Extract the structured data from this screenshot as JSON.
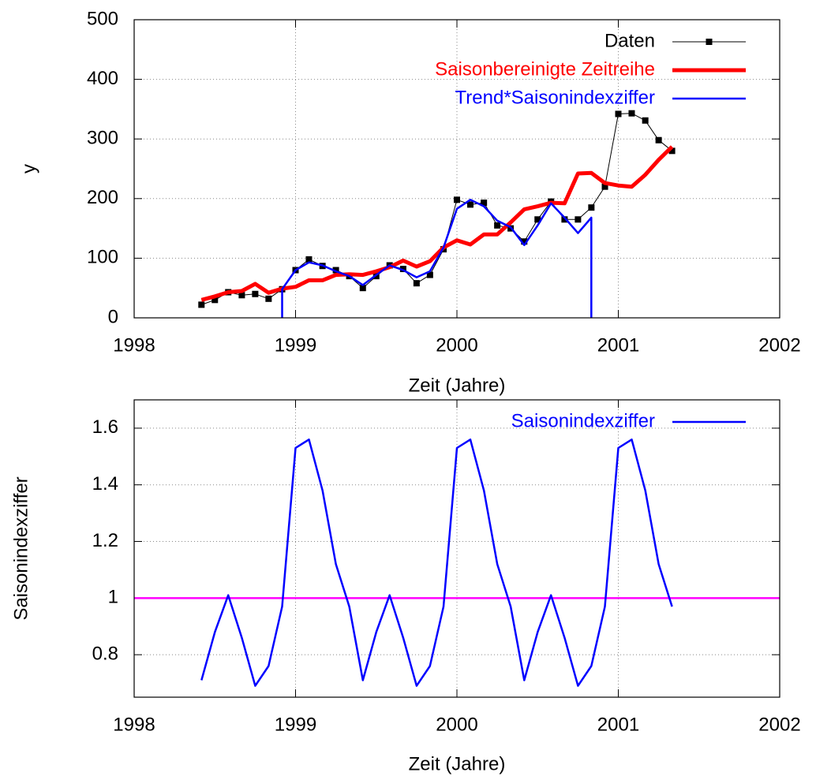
{
  "chart_data": [
    {
      "type": "line",
      "xlabel": "Zeit (Jahre)",
      "ylabel": "y",
      "xlim": [
        1998,
        2002
      ],
      "ylim": [
        0,
        500
      ],
      "xticks": [
        1998,
        1999,
        2000,
        2001,
        2002
      ],
      "yticks": [
        0,
        100,
        200,
        300,
        400,
        500
      ],
      "grid": true,
      "legend": "upper right",
      "x": [
        1998.417,
        1998.5,
        1998.583,
        1998.667,
        1998.75,
        1998.833,
        1998.917,
        1999,
        1999.083,
        1999.167,
        1999.25,
        1999.333,
        1999.417,
        1999.5,
        1999.583,
        1999.667,
        1999.75,
        1999.833,
        1999.917,
        2000,
        2000.083,
        2000.167,
        2000.25,
        2000.333,
        2000.417,
        2000.5,
        2000.583,
        2000.667,
        2000.75,
        2000.833,
        2000.917,
        2001,
        2001.083,
        2001.167,
        2001.25,
        2001.333
      ],
      "series": [
        {
          "name": "Daten",
          "color": "#000000",
          "width": 1,
          "marker": "square",
          "values": [
            22,
            30,
            43,
            38,
            40,
            32,
            48,
            80,
            98,
            87,
            80,
            70,
            50,
            70,
            88,
            82,
            58,
            72,
            115,
            198,
            190,
            193,
            155,
            150,
            128,
            165,
            195,
            165,
            165,
            185,
            220,
            342,
            343,
            331,
            298,
            280
          ]
        },
        {
          "name": "Saisonbereinigte Zeitreihe",
          "color": "#ff0000",
          "width": 5,
          "values": [
            30,
            36,
            43,
            45,
            57,
            42,
            49,
            52,
            63,
            63,
            72,
            73,
            72,
            78,
            85,
            96,
            86,
            95,
            118,
            130,
            123,
            140,
            140,
            160,
            182,
            187,
            193,
            192,
            242,
            243,
            226,
            222,
            220,
            240,
            265,
            287
          ]
        },
        {
          "name": "Trend*Saisonindexziffer",
          "color": "#0000ff",
          "width": 2.5,
          "x": [
            1998.917,
            1998.917,
            1999,
            1999.083,
            1999.167,
            1999.25,
            1999.333,
            1999.417,
            1999.5,
            1999.583,
            1999.667,
            1999.75,
            1999.833,
            1999.917,
            2000,
            2000.083,
            2000.167,
            2000.25,
            2000.333,
            2000.417,
            2000.5,
            2000.583,
            2000.667,
            2000.75,
            2000.833,
            2000.833
          ],
          "values": [
            0,
            48,
            80,
            93,
            88,
            78,
            70,
            55,
            72,
            88,
            80,
            68,
            78,
            118,
            183,
            198,
            187,
            163,
            152,
            122,
            155,
            192,
            168,
            142,
            168,
            0
          ]
        }
      ]
    },
    {
      "type": "line",
      "xlabel": "Zeit (Jahre)",
      "ylabel": "Saisonindexziffer",
      "xlim": [
        1998,
        2002
      ],
      "ylim": [
        0.65,
        1.7
      ],
      "xticks": [
        1998,
        1999,
        2000,
        2001,
        2002
      ],
      "yticks": [
        0.8,
        1,
        1.2,
        1.4,
        1.6
      ],
      "grid": true,
      "legend": "upper right",
      "hline": {
        "value": 1,
        "color": "#ff00ff"
      },
      "x": [
        1998.417,
        1998.5,
        1998.583,
        1998.667,
        1998.75,
        1998.833,
        1998.917,
        1999,
        1999.083,
        1999.167,
        1999.25,
        1999.333,
        1999.417,
        1999.5,
        1999.583,
        1999.667,
        1999.75,
        1999.833,
        1999.917,
        2000,
        2000.083,
        2000.167,
        2000.25,
        2000.333,
        2000.417,
        2000.5,
        2000.583,
        2000.667,
        2000.75,
        2000.833,
        2000.917,
        2001,
        2001.083,
        2001.167,
        2001.25,
        2001.333
      ],
      "series": [
        {
          "name": "Saisonindexziffer",
          "color": "#0000ff",
          "width": 2.5,
          "values": [
            0.71,
            0.88,
            1.01,
            0.86,
            0.69,
            0.76,
            0.97,
            1.53,
            1.56,
            1.38,
            1.12,
            0.97,
            0.71,
            0.88,
            1.01,
            0.86,
            0.69,
            0.76,
            0.97,
            1.53,
            1.56,
            1.38,
            1.12,
            0.97,
            0.71,
            0.88,
            1.01,
            0.86,
            0.69,
            0.76,
            0.97,
            1.53,
            1.56,
            1.38,
            1.12,
            0.97
          ]
        }
      ]
    }
  ]
}
